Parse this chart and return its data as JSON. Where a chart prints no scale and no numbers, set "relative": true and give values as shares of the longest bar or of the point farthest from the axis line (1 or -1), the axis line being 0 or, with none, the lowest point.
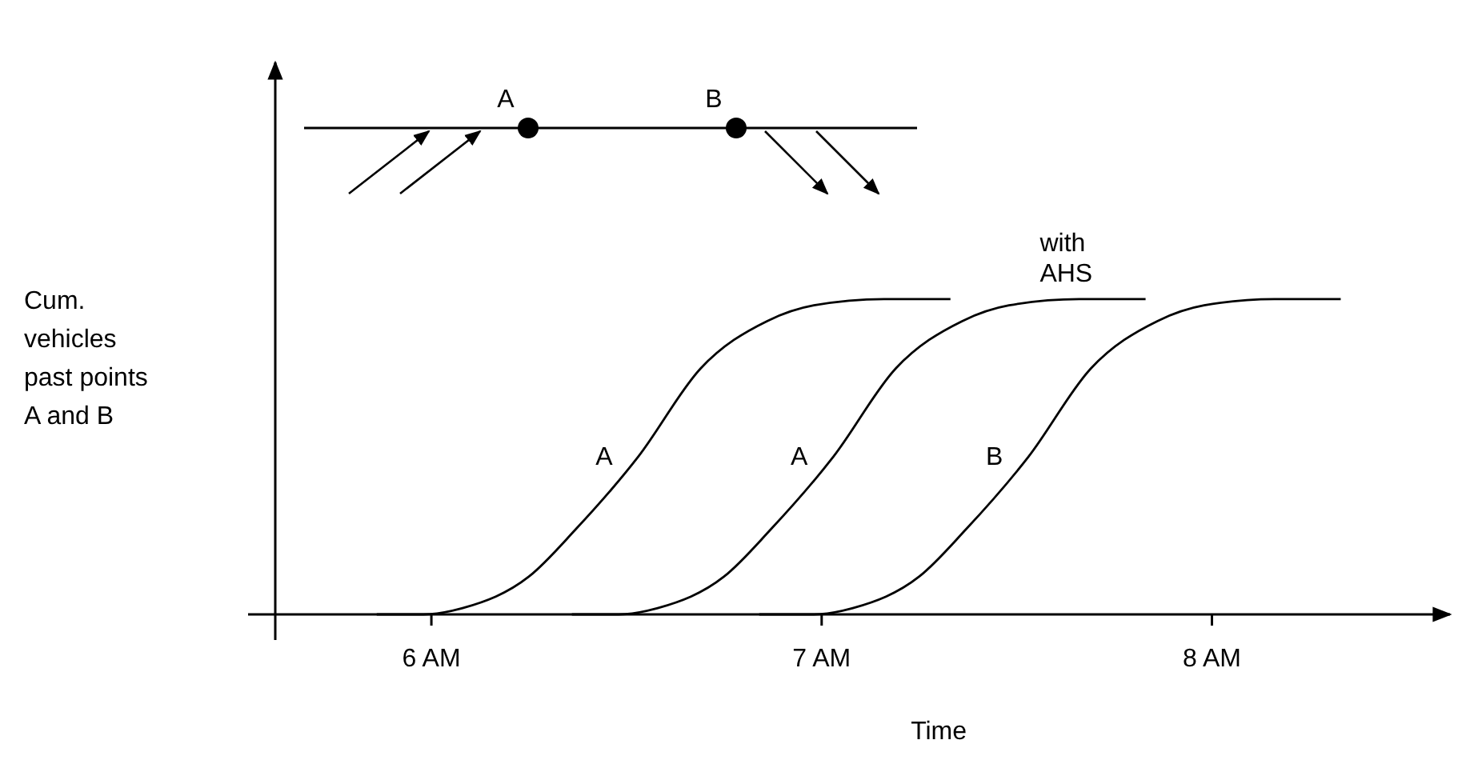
{
  "chart_data": {
    "type": "line",
    "relative": true,
    "xlabel": "Time",
    "ylabel": "Cum. vehicles past points A and B",
    "xlim": [
      5.6,
      8.61
    ],
    "xticks": [
      {
        "value": 6,
        "label": "6 AM"
      },
      {
        "value": 7,
        "label": "7 AM"
      },
      {
        "value": 8,
        "label": "8 AM"
      }
    ],
    "tick_labels": "x",
    "grid": false,
    "marker": "none",
    "line_style": "solid",
    "series": [
      {
        "name": "A",
        "color": "#000000",
        "x": [
          5.86,
          5.98,
          6.08,
          6.25,
          6.37,
          6.53,
          6.69,
          6.86,
          6.98,
          7.16,
          7.33
        ],
        "values": [
          0,
          0,
          0.02,
          0.12,
          0.27,
          0.5,
          0.78,
          0.93,
          0.98,
          1,
          1
        ]
      },
      {
        "name": "A",
        "color": "#000000",
        "x": [
          6.36,
          6.48,
          6.58,
          6.75,
          6.87,
          7.03,
          7.19,
          7.36,
          7.48,
          7.66,
          7.83
        ],
        "values": [
          0,
          0,
          0.02,
          0.12,
          0.27,
          0.5,
          0.78,
          0.93,
          0.98,
          1,
          1
        ]
      },
      {
        "name": "B",
        "color": "#000000",
        "x": [
          6.84,
          6.98,
          7.08,
          7.25,
          7.37,
          7.53,
          7.69,
          7.86,
          7.98,
          8.16,
          8.33
        ],
        "values": [
          0,
          0,
          0.02,
          0.12,
          0.27,
          0.5,
          0.78,
          0.93,
          0.98,
          1,
          1
        ]
      }
    ],
    "annotations": [
      {
        "text": "with AHS",
        "x": 7.6,
        "y": 1
      },
      "A",
      "B"
    ]
  }
}
